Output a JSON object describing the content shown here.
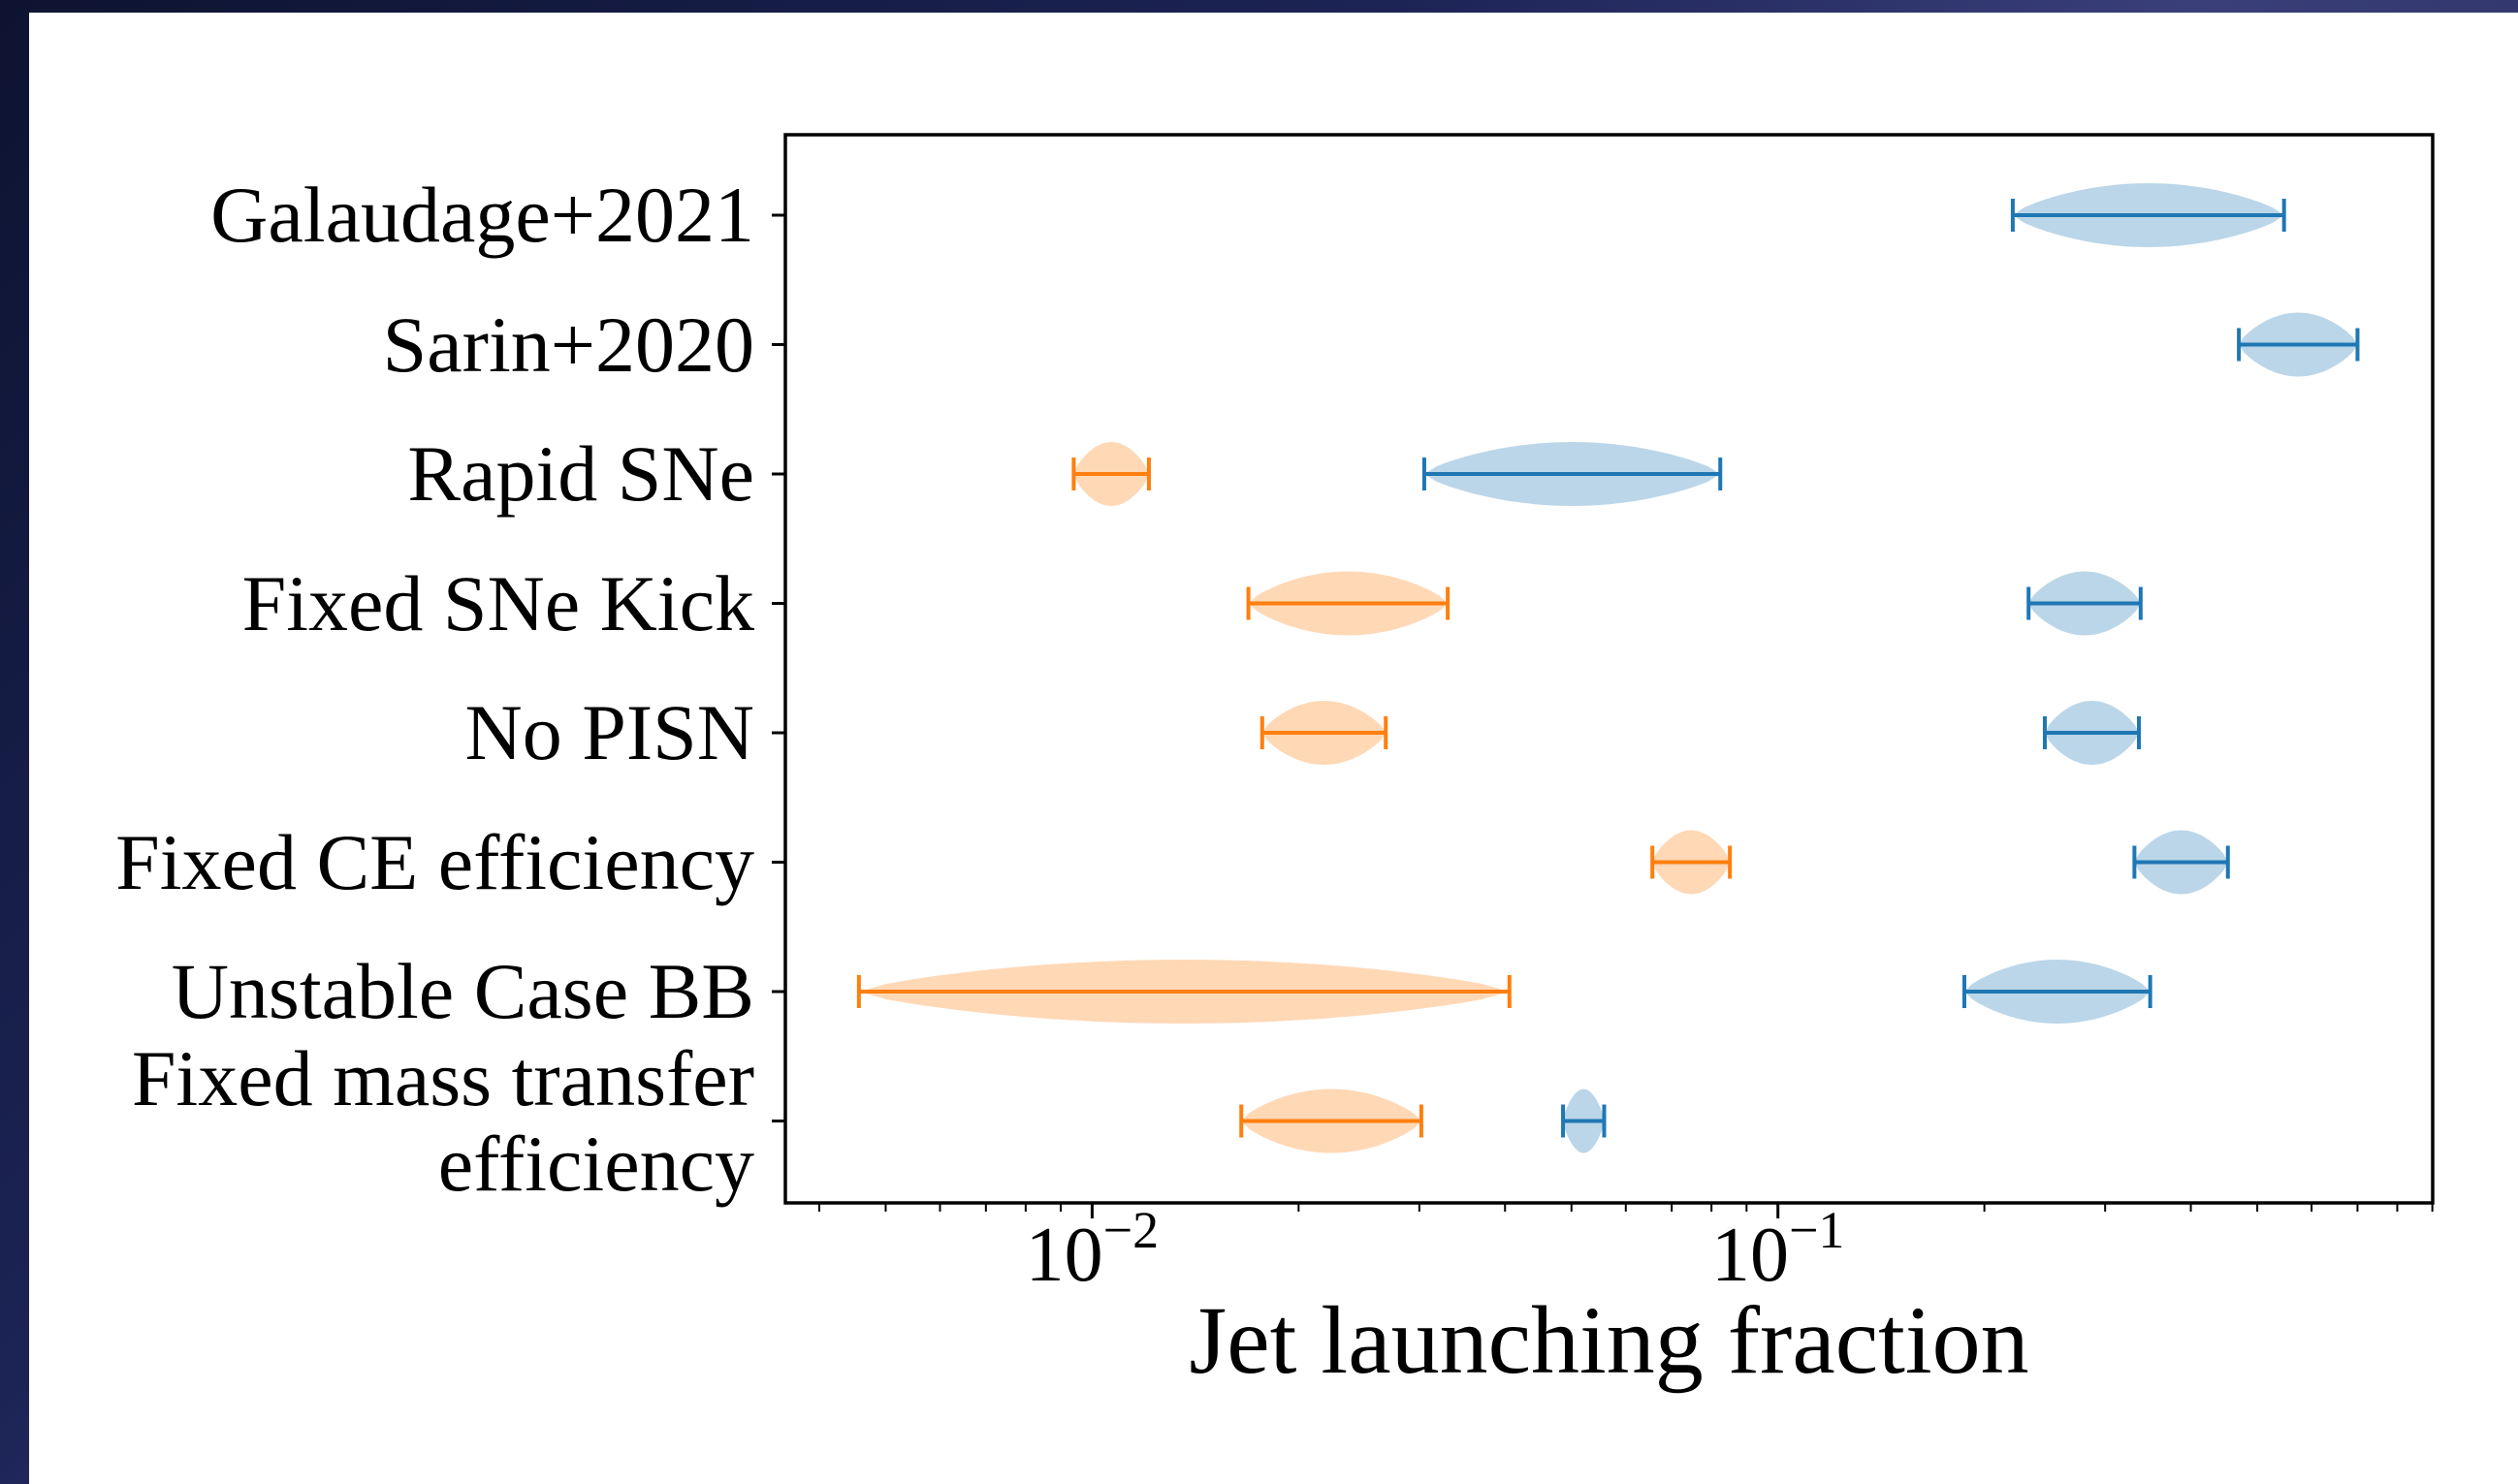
{
  "chart_data": {
    "type": "violin",
    "orientation": "horizontal",
    "xlabel": "Jet launching fraction",
    "categories": [
      "Galaudage+2021",
      "Sarin+2020",
      "Rapid SNe",
      "Fixed SNe Kick",
      "No PISN",
      "Fixed CE efficiency",
      "Unstable Case BB",
      "Fixed mass transfer\nefficiency"
    ],
    "series": [
      {
        "color": "#ff7f0e",
        "min": [
          null,
          null,
          0.0094,
          0.0169,
          0.0177,
          0.0656,
          0.00457,
          0.0165
        ],
        "max": [
          null,
          null,
          0.0121,
          0.033,
          0.0268,
          0.0851,
          0.0406,
          0.0302
        ]
      },
      {
        "color": "#1f77b4",
        "min": [
          0.22,
          0.47,
          0.0305,
          0.232,
          0.245,
          0.331,
          0.187,
          0.0486
        ],
        "max": [
          0.547,
          0.7,
          0.0824,
          0.338,
          0.336,
          0.453,
          0.349,
          0.0558
        ]
      }
    ],
    "xscale": "log",
    "xlim": [
      0.00357,
      0.901
    ],
    "xticks": [
      {
        "value": 0.01,
        "label": "10",
        "exponent": "−2"
      },
      {
        "value": 0.1,
        "label": "10",
        "exponent": "−1"
      }
    ],
    "xminorticks": [
      0.004,
      0.005,
      0.006,
      0.007,
      0.008,
      0.009,
      0.02,
      0.03,
      0.04,
      0.05,
      0.06,
      0.07,
      0.08,
      0.09,
      0.2,
      0.3,
      0.4,
      0.5,
      0.6,
      0.7,
      0.8,
      0.9
    ]
  }
}
